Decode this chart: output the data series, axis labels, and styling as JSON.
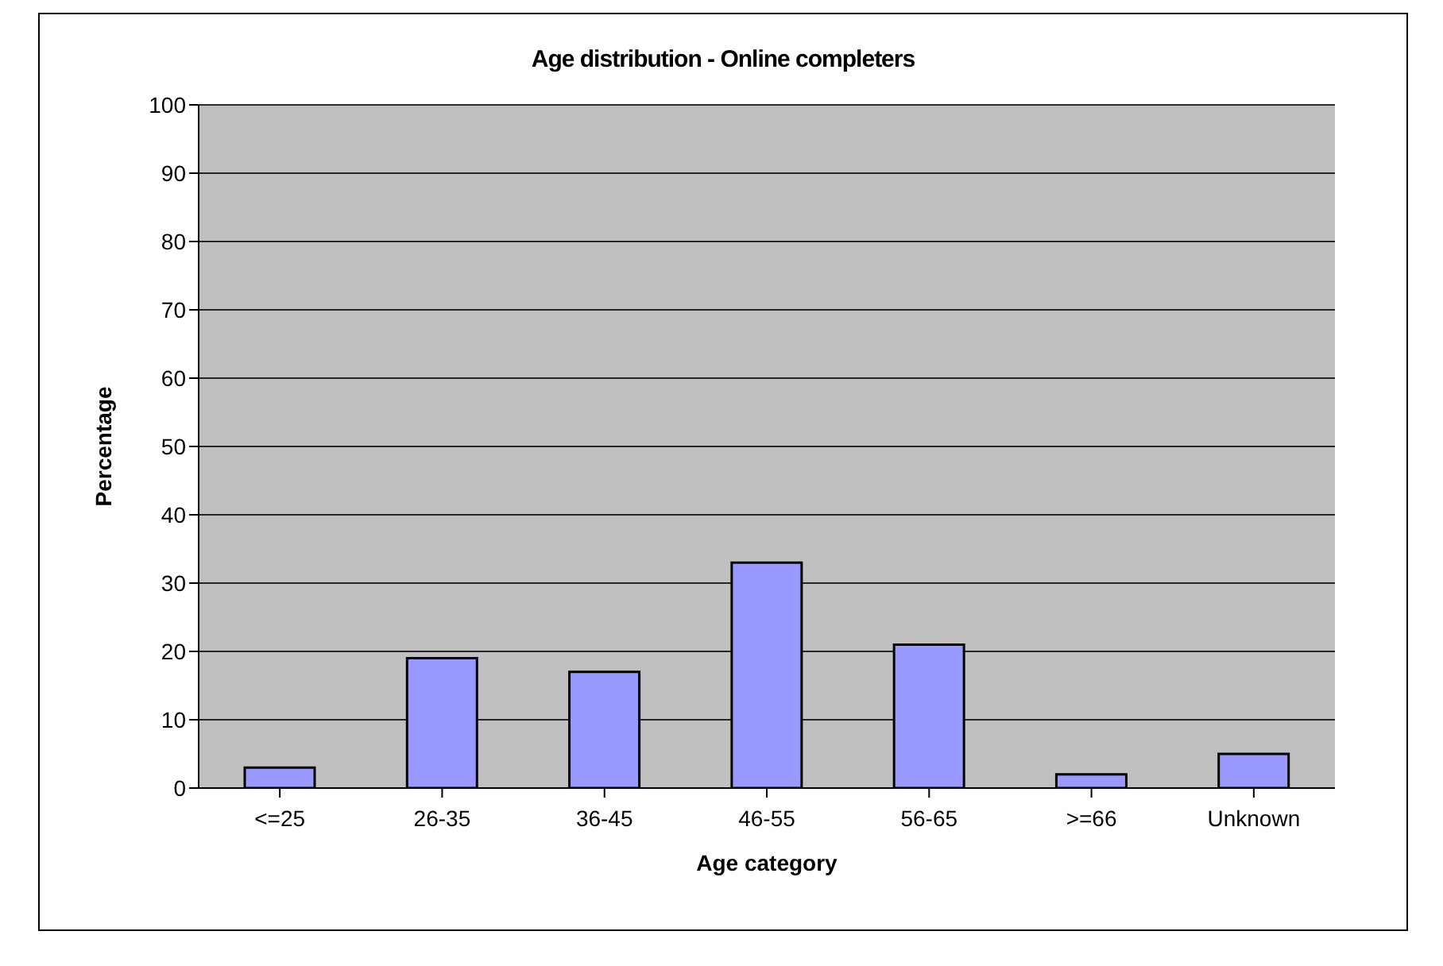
{
  "chart_data": {
    "type": "bar",
    "title": "Age distribution - Online completers",
    "xlabel": "Age category",
    "ylabel": "Percentage",
    "categories": [
      "<=25",
      "26-35",
      "36-45",
      "46-55",
      "56-65",
      ">=66",
      "Unknown"
    ],
    "values": [
      3,
      19,
      17,
      33,
      21,
      2,
      5
    ],
    "color": "#9999ff",
    "ylim": [
      0,
      100
    ],
    "yticks": [
      0,
      10,
      20,
      30,
      40,
      50,
      60,
      70,
      80,
      90,
      100
    ],
    "grid": "y"
  }
}
